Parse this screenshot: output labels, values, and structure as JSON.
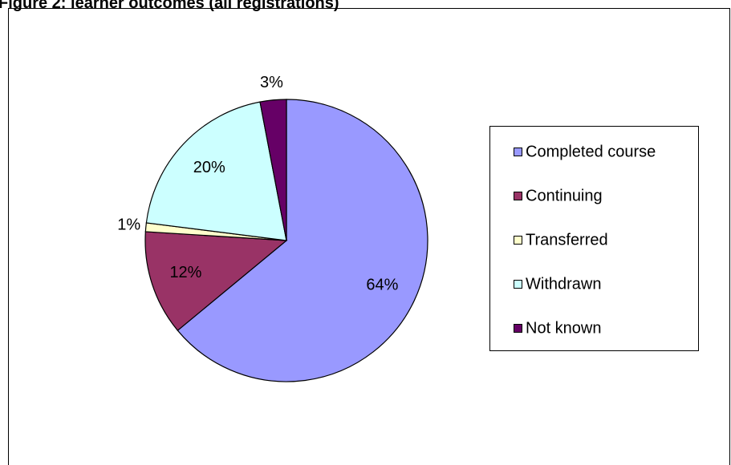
{
  "chart_data": {
    "type": "pie",
    "title": "Figure 2: learner outcomes (all registrations)",
    "categories": [
      "Completed course",
      "Continuing",
      "Transferred",
      "Withdrawn",
      "Not known"
    ],
    "values": [
      64,
      12,
      1,
      20,
      3
    ],
    "value_labels": [
      "64%",
      "12%",
      "1%",
      "20%",
      "3%"
    ],
    "colors": [
      "#9999ff",
      "#993366",
      "#ffffcc",
      "#ccffff",
      "#660066"
    ],
    "legend": "right"
  }
}
